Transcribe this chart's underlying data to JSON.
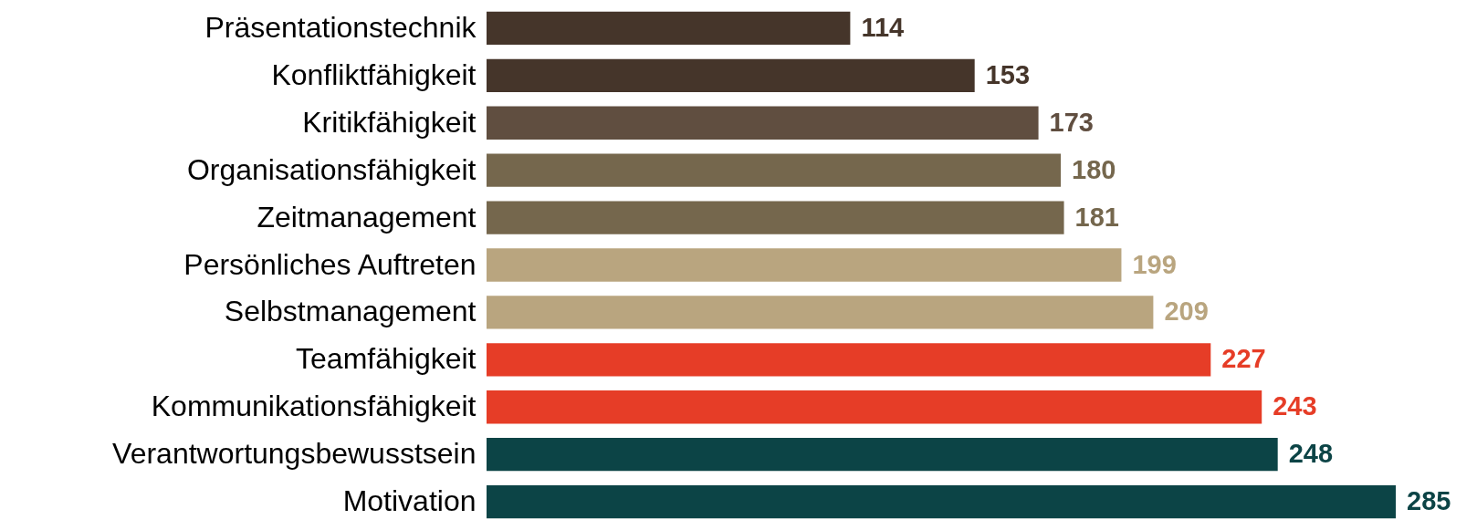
{
  "chart_data": {
    "type": "bar",
    "orientation": "horizontal",
    "data_labels": true,
    "categories": [
      "Präsentationstechnik",
      "Konfliktfähigkeit",
      "Kritikfähigkeit",
      "Organisationsfähigkeit",
      "Zeitmanagement",
      "Persönliches Auftreten",
      "Selbstmanagement",
      "Teamfähigkeit",
      "Kommunikationsfähigkeit",
      "Verantwortungsbewusstsein",
      "Motivation"
    ],
    "values": [
      114,
      153,
      173,
      180,
      181,
      199,
      209,
      227,
      243,
      248,
      285
    ],
    "colors": [
      "#45352a",
      "#45352a",
      "#604e40",
      "#75674d",
      "#75674d",
      "#b9a57f",
      "#b9a57f",
      "#e63d27",
      "#e63d27",
      "#0c4446",
      "#0c4446"
    ]
  }
}
